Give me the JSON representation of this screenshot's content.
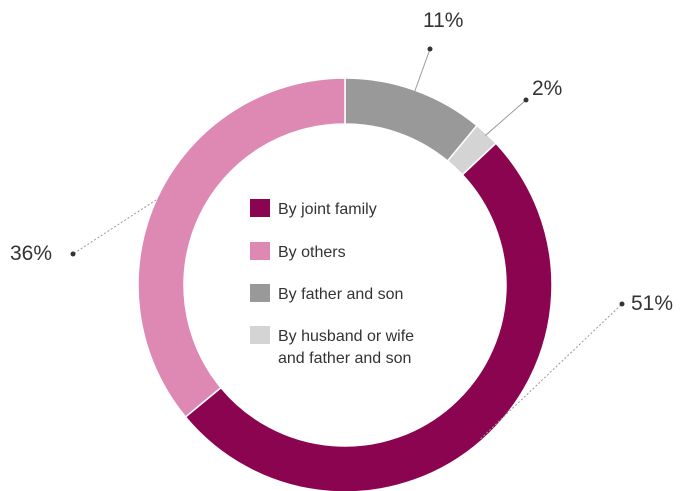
{
  "chart_data": {
    "type": "pie",
    "variant": "donut",
    "title": "",
    "legend_position": "center",
    "slices": [
      {
        "label": "By joint family",
        "value": 51,
        "display": "51%",
        "color": "#8b0450"
      },
      {
        "label": "By others",
        "value": 36,
        "display": "36%",
        "color": "#de89b3"
      },
      {
        "label": "By father and son",
        "value": 11,
        "display": "11%",
        "color": "#999999"
      },
      {
        "label": "By husband or wife and father and son",
        "value": 2,
        "display": "2%",
        "color": "#d4d4d4"
      }
    ],
    "legend_text_lines": [
      [
        "By joint family"
      ],
      [
        "By others"
      ],
      [
        "By father and son"
      ],
      [
        "By husband or wife",
        "and father and son"
      ]
    ]
  }
}
